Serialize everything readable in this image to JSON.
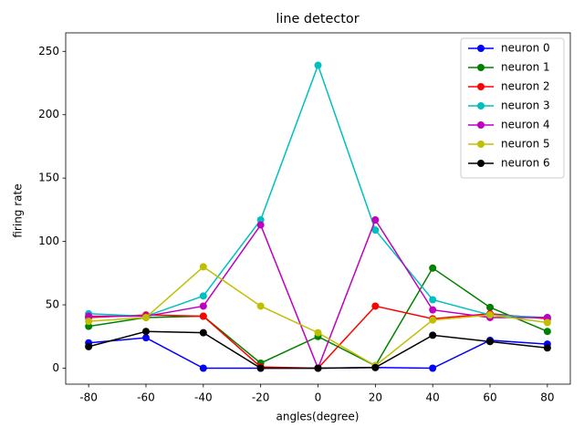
{
  "chart_data": {
    "type": "line",
    "title": "line detector",
    "xlabel": "angles(degree)",
    "ylabel": "firing rate",
    "x": [
      -80,
      -60,
      -40,
      -20,
      0,
      20,
      40,
      60,
      80
    ],
    "series": [
      {
        "name": "neuron 0",
        "color": "#0000ff",
        "values": [
          20,
          24,
          0,
          0,
          0,
          0.5,
          0,
          22,
          19
        ]
      },
      {
        "name": "neuron 1",
        "color": "#008000",
        "values": [
          33,
          40,
          41,
          4,
          25,
          2,
          79,
          48,
          29
        ]
      },
      {
        "name": "neuron 2",
        "color": "#ff0000",
        "values": [
          40,
          42,
          41,
          1,
          0,
          49,
          39,
          43,
          39
        ]
      },
      {
        "name": "neuron 3",
        "color": "#00bfbf",
        "values": [
          43,
          41,
          57,
          117,
          239,
          109,
          54,
          42,
          40
        ]
      },
      {
        "name": "neuron 4",
        "color": "#bf00bf",
        "values": [
          41,
          41,
          49,
          113,
          0,
          117,
          46,
          40,
          40
        ]
      },
      {
        "name": "neuron 5",
        "color": "#bfbf00",
        "values": [
          37,
          40,
          80,
          49,
          28,
          2,
          38,
          42,
          36
        ]
      },
      {
        "name": "neuron 6",
        "color": "#000000",
        "values": [
          17,
          29,
          28,
          0,
          0,
          0.5,
          26,
          21,
          16
        ]
      }
    ],
    "xlim": [
      -88,
      88
    ],
    "ylim": [
      -12.6,
      264.6
    ],
    "xticks": [
      -80,
      -60,
      -40,
      -20,
      0,
      20,
      40,
      60,
      80
    ],
    "yticks": [
      0,
      50,
      100,
      150,
      200,
      250
    ],
    "legend": "upper right"
  }
}
